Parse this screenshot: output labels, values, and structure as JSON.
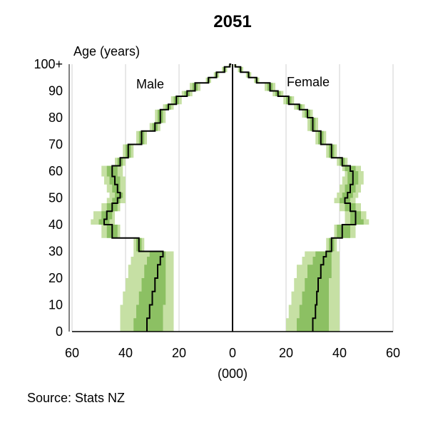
{
  "chart_data": {
    "type": "population-pyramid",
    "title": "2051",
    "ylabel": "Age (years)",
    "xlabel": "(000)",
    "xlim": [
      0,
      60
    ],
    "ylim": [
      0,
      100
    ],
    "x_ticks": [
      "60",
      "40",
      "20",
      "0",
      "20",
      "40",
      "60"
    ],
    "y_ticks": [
      "0",
      "10",
      "20",
      "30",
      "40",
      "50",
      "60",
      "70",
      "80",
      "90",
      "100+"
    ],
    "grid": "vertical",
    "series_labels": {
      "male": "Male",
      "female": "Female"
    },
    "ages": [
      0,
      5,
      10,
      15,
      20,
      25,
      28,
      30,
      35,
      40,
      42,
      45,
      48,
      50,
      52,
      55,
      58,
      60,
      62,
      65,
      70,
      75,
      78,
      80,
      83,
      85,
      88,
      90,
      93,
      95,
      97,
      99,
      100
    ],
    "male_median": [
      32,
      31,
      30,
      29,
      28,
      27,
      26,
      35,
      45,
      48,
      47,
      45,
      43,
      42,
      43,
      44,
      45,
      45,
      42,
      39,
      34,
      29,
      27,
      27,
      24,
      21,
      17,
      14,
      9,
      6,
      3,
      1,
      0.5
    ],
    "female_median": [
      30,
      31,
      31.5,
      32,
      33,
      34,
      35,
      37,
      41,
      46,
      46,
      44,
      42,
      43,
      44,
      45,
      45,
      44,
      41,
      37,
      33,
      30,
      30,
      28,
      25,
      21,
      17,
      14,
      9,
      6,
      3,
      1,
      1
    ],
    "male_band_inner": [
      [
        26,
        37
      ],
      [
        26,
        36
      ],
      [
        25,
        35
      ],
      [
        25,
        34
      ],
      [
        25,
        33
      ],
      [
        25,
        32
      ],
      [
        25,
        31
      ],
      [
        34,
        36
      ],
      [
        43,
        47
      ],
      [
        46,
        50
      ],
      [
        45,
        49
      ],
      [
        43,
        47
      ],
      [
        42,
        45
      ],
      [
        41,
        44
      ],
      [
        42,
        45
      ],
      [
        42,
        46
      ],
      [
        43,
        47
      ],
      [
        43,
        47
      ],
      [
        41,
        43
      ],
      [
        38,
        40
      ],
      [
        33,
        35
      ],
      [
        28,
        30
      ],
      [
        26,
        28
      ],
      [
        26,
        28
      ],
      [
        23,
        25
      ],
      [
        20,
        22
      ],
      [
        16,
        18
      ],
      [
        13,
        15
      ],
      [
        8.5,
        9.5
      ],
      [
        5.5,
        6.5
      ],
      [
        2.5,
        3.5
      ],
      [
        0.8,
        1.2
      ],
      [
        0.3,
        0.7
      ]
    ],
    "male_band_outer": [
      [
        22,
        42
      ],
      [
        22,
        42
      ],
      [
        22,
        41
      ],
      [
        22,
        40
      ],
      [
        22,
        39
      ],
      [
        22,
        38
      ],
      [
        22,
        37
      ],
      [
        33,
        37
      ],
      [
        42,
        49
      ],
      [
        44,
        53
      ],
      [
        44,
        52
      ],
      [
        42,
        49
      ],
      [
        40,
        47
      ],
      [
        40,
        46
      ],
      [
        40,
        47
      ],
      [
        40,
        48
      ],
      [
        41,
        49
      ],
      [
        41,
        49
      ],
      [
        40,
        44
      ],
      [
        37,
        41
      ],
      [
        32,
        36
      ],
      [
        27,
        31
      ],
      [
        25,
        29
      ],
      [
        25,
        29
      ],
      [
        22,
        26
      ],
      [
        19,
        23
      ],
      [
        15,
        19
      ],
      [
        12,
        16
      ],
      [
        8,
        10
      ],
      [
        5,
        7
      ],
      [
        2,
        4
      ],
      [
        0.5,
        1.5
      ],
      [
        0.2,
        0.8
      ]
    ],
    "female_band_inner": [
      [
        24,
        36
      ],
      [
        25,
        36
      ],
      [
        26,
        36
      ],
      [
        27,
        36
      ],
      [
        28,
        37
      ],
      [
        30,
        37
      ],
      [
        31,
        37
      ],
      [
        36,
        38
      ],
      [
        39,
        44
      ],
      [
        44,
        49
      ],
      [
        44,
        48
      ],
      [
        42,
        46
      ],
      [
        40,
        44
      ],
      [
        41,
        45
      ],
      [
        42,
        46
      ],
      [
        43,
        47
      ],
      [
        43,
        47
      ],
      [
        42,
        46
      ],
      [
        40,
        42
      ],
      [
        36,
        38
      ],
      [
        32,
        34
      ],
      [
        29,
        31
      ],
      [
        29,
        31
      ],
      [
        27,
        29
      ],
      [
        24,
        26
      ],
      [
        20,
        22
      ],
      [
        16,
        18
      ],
      [
        13,
        15
      ],
      [
        8.5,
        9.5
      ],
      [
        5.5,
        6.5
      ],
      [
        2.5,
        3.5
      ],
      [
        0.8,
        1.2
      ],
      [
        0.5,
        1.5
      ]
    ],
    "female_band_outer": [
      [
        20,
        40
      ],
      [
        21,
        40
      ],
      [
        22,
        40
      ],
      [
        23,
        40
      ],
      [
        24,
        40
      ],
      [
        26,
        40
      ],
      [
        27,
        40
      ],
      [
        35,
        39
      ],
      [
        38,
        46
      ],
      [
        42,
        51
      ],
      [
        42,
        50
      ],
      [
        40,
        48
      ],
      [
        38,
        46
      ],
      [
        39,
        47
      ],
      [
        40,
        48
      ],
      [
        41,
        49
      ],
      [
        42,
        49
      ],
      [
        41,
        48
      ],
      [
        39,
        43
      ],
      [
        35,
        39
      ],
      [
        31,
        35
      ],
      [
        28,
        32
      ],
      [
        28,
        32
      ],
      [
        26,
        30
      ],
      [
        23,
        27
      ],
      [
        19,
        23
      ],
      [
        15,
        19
      ],
      [
        12,
        16
      ],
      [
        8,
        10
      ],
      [
        5,
        7
      ],
      [
        2,
        4
      ],
      [
        0.5,
        1.5
      ],
      [
        0.3,
        3
      ]
    ],
    "colors": {
      "outer_band": "#c6e0a4",
      "inner_band": "#8cc063",
      "core_band": "#5a9e3a",
      "median": "#000000",
      "grid": "#d0d0d0",
      "axis": "#000000"
    }
  },
  "footer": {
    "source": "Source: Stats NZ"
  }
}
